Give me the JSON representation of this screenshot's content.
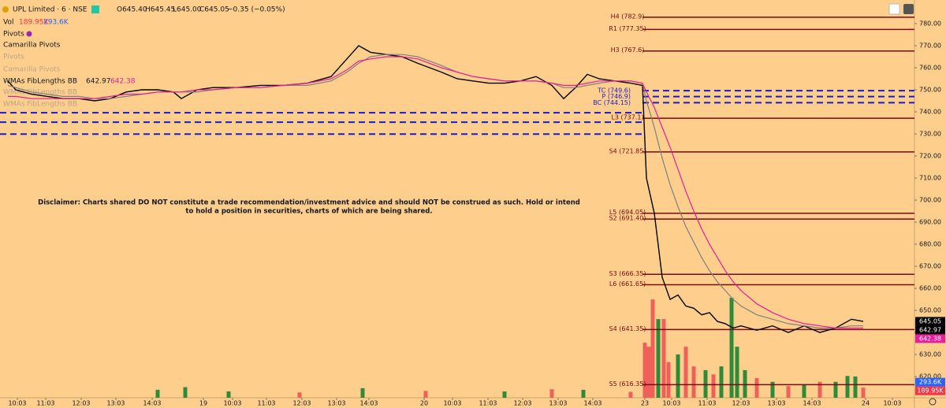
{
  "header": {
    "title": "UPL Limited · 6 · NSE",
    "ohlc": [
      "O645.40",
      "H645.45",
      "L645.00",
      "C645.05"
    ],
    "change": "−0.35 (−0.05%)",
    "volume_label": "Vol",
    "volume_values": [
      "189.95K",
      "293.6K"
    ],
    "indicators": [
      "Pivots",
      "Camarilla Pivots",
      "Pivots",
      "Camarilla Pivots",
      "WMAs FibLengths BB",
      "WMAs FibLengths BB",
      "WMAs FibLengths BB"
    ],
    "wma_values": [
      "642.97",
      "642.38"
    ]
  },
  "disclaimer": [
    "Disclaimer:  Charts shared DO NOT constitute a trade recommendation/investment advice and should NOT be construed as such. Hold or intend",
    "to hold a position in securities, charts of which are being shared."
  ],
  "chart_data": {
    "type": "line",
    "x": [
      1,
      2,
      4,
      6,
      8,
      10,
      12,
      14,
      16,
      18,
      20,
      22,
      23,
      25,
      27,
      30,
      33,
      36,
      39,
      42,
      44,
      45.5,
      47,
      49,
      51,
      53,
      54.5,
      56,
      58,
      60,
      62,
      64,
      66,
      68,
      70,
      71.5,
      73,
      74.5,
      76,
      78,
      80,
      81.5,
      82,
      83,
      84,
      85,
      86,
      87,
      88,
      89,
      90,
      91,
      92,
      93,
      94,
      96,
      98,
      100,
      102,
      104,
      106,
      108,
      109.5
    ],
    "series": [
      {
        "color": "#000000",
        "values": [
          754,
          750,
          748,
          747,
          746,
          746,
          745,
          746,
          749,
          750,
          750,
          749,
          746,
          750,
          751,
          751,
          752,
          752,
          753,
          756,
          764,
          770,
          767,
          766,
          765,
          762,
          760,
          758,
          755,
          754,
          753,
          753,
          754,
          756,
          752,
          746,
          751,
          757,
          755,
          754,
          753,
          752,
          710,
          694,
          665,
          655,
          657,
          652,
          651,
          648,
          649,
          645,
          644,
          642,
          643,
          641,
          643,
          640,
          643,
          640,
          642,
          646,
          645
        ]
      },
      {
        "color": "#808080",
        "values": [
          752,
          751,
          749,
          748,
          747,
          747,
          746,
          746,
          747,
          748,
          749,
          749,
          749,
          749,
          750,
          751,
          751,
          752,
          752,
          754,
          758,
          762,
          765,
          766,
          766,
          765,
          763,
          761,
          758,
          756,
          755,
          754,
          754,
          754,
          753,
          751,
          751,
          752,
          753,
          754,
          754,
          753,
          745,
          733,
          719,
          707,
          697,
          688,
          681,
          674,
          668,
          663,
          659,
          655,
          652,
          648,
          646,
          644,
          643,
          642,
          642,
          643,
          643
        ]
      },
      {
        "color": "#e91e9c",
        "values": [
          747,
          747,
          746,
          746,
          746,
          746,
          746,
          747,
          748,
          748,
          749,
          749,
          749,
          750,
          750,
          751,
          751,
          752,
          753,
          755,
          759,
          763,
          764,
          765,
          765,
          764,
          762,
          760,
          758,
          756,
          755,
          754,
          754,
          754,
          753,
          752,
          752,
          753,
          754,
          754,
          754,
          753,
          749,
          742,
          733,
          724,
          714,
          704,
          695,
          687,
          680,
          674,
          668,
          663,
          659,
          653,
          649,
          646,
          644,
          643,
          642,
          642,
          642
        ]
      }
    ],
    "xlim": [
      0,
      116
    ],
    "xticks": [
      {
        "value": 2.2,
        "label": "10:03"
      },
      {
        "value": 5.8,
        "label": "11:03"
      },
      {
        "value": 10.3,
        "label": "12:03"
      },
      {
        "value": 14.7,
        "label": "13:03"
      },
      {
        "value": 19.3,
        "label": "14:03"
      },
      {
        "value": 25.8,
        "label": "19"
      },
      {
        "value": 29.5,
        "label": "10:03"
      },
      {
        "value": 33.8,
        "label": "11:03"
      },
      {
        "value": 38.3,
        "label": "12:03"
      },
      {
        "value": 42.7,
        "label": "13:03"
      },
      {
        "value": 46.8,
        "label": "14:03"
      },
      {
        "value": 53.8,
        "label": "20"
      },
      {
        "value": 57.4,
        "label": "10:03"
      },
      {
        "value": 61.9,
        "label": "11:03"
      },
      {
        "value": 66.3,
        "label": "12:03"
      },
      {
        "value": 70.8,
        "label": "13:03"
      },
      {
        "value": 75.2,
        "label": "14:03"
      },
      {
        "value": 81.8,
        "label": "23"
      },
      {
        "value": 85.2,
        "label": "10:03"
      },
      {
        "value": 89.7,
        "label": "11:03"
      },
      {
        "value": 94,
        "label": "12:03"
      },
      {
        "value": 98.5,
        "label": "13:03"
      },
      {
        "value": 103,
        "label": "14:03"
      },
      {
        "value": 109.8,
        "label": "24"
      },
      {
        "value": 113.2,
        "label": "10:03"
      }
    ],
    "ylim": [
      610.4,
      790.7
    ],
    "yticks": [
      {
        "value": 620,
        "label": "620.00"
      },
      {
        "value": 630,
        "label": "630.00"
      },
      {
        "value": 640,
        "label": "640.00"
      },
      {
        "value": 650,
        "label": "650.00"
      },
      {
        "value": 660,
        "label": "660.00"
      },
      {
        "value": 670,
        "label": "670.00"
      },
      {
        "value": 680,
        "label": "680.00"
      },
      {
        "value": 690,
        "label": "690.00"
      },
      {
        "value": 700,
        "label": "700.00"
      },
      {
        "value": 710,
        "label": "710.00"
      },
      {
        "value": 720,
        "label": "720.00"
      },
      {
        "value": 730,
        "label": "730.00"
      },
      {
        "value": 740,
        "label": "740.00"
      },
      {
        "value": 750,
        "label": "750.00"
      },
      {
        "value": 760,
        "label": "760.00"
      },
      {
        "value": 770,
        "label": "770.00"
      },
      {
        "value": 780,
        "label": "780.00"
      }
    ],
    "pivots": [
      {
        "value": 782.9,
        "label": "H4 (782.9)"
      },
      {
        "value": 777.35,
        "label": "R1 (777.35)"
      },
      {
        "value": 767.6,
        "label": "H3 (767.6)"
      },
      {
        "value": 737.1,
        "label": "L3 (737.1)"
      },
      {
        "value": 721.85,
        "label": "S4 (721.85)"
      },
      {
        "value": 694.05,
        "label": "L5 (694.05)"
      },
      {
        "value": 691.4,
        "label": "S2 (691.40)"
      },
      {
        "value": 666.35,
        "label": "S3 (666.35)"
      },
      {
        "value": 661.65,
        "label": "L6 (661.65)"
      },
      {
        "value": 641.35,
        "label": "S4 (641.35)"
      },
      {
        "value": 616.35,
        "label": "S5 (616.35)"
      }
    ],
    "pivot_color": "#7a0a14",
    "cpr": [
      {
        "value": 749.6,
        "label": "TC (749.6)"
      },
      {
        "value": 746.9,
        "label": "P (746.9)"
      },
      {
        "value": 744.15,
        "label": "BC (744.15)"
      }
    ],
    "prev_cpr": [
      739.6,
      735.3,
      729.9
    ],
    "cpr_color": "#1a1ad0",
    "last_labels": [
      {
        "value": 645.05,
        "label": "645.05",
        "color": "#000000"
      },
      {
        "value": 642.97,
        "label": "642.97",
        "color": "#000000"
      },
      {
        "value": 642.38,
        "label": "642.38",
        "color": "#e91e9c"
      }
    ],
    "volume": {
      "x": [
        20,
        23.5,
        29,
        38,
        46,
        54,
        64,
        70,
        74,
        80,
        81.8,
        82.3,
        82.8,
        83.5,
        84.2,
        84.8,
        86,
        87,
        88,
        89.5,
        90.5,
        91.5,
        92.8,
        93.5,
        94.5,
        96,
        98,
        100,
        102,
        104,
        106,
        107.5,
        108.5,
        109.5
      ],
      "values": [
        150,
        200,
        120,
        100,
        180,
        130,
        120,
        160,
        150,
        110,
        1036,
        960,
        1850,
        1480,
        1480,
        670,
        815,
        960,
        590,
        520,
        440,
        590,
        1880,
        960,
        520,
        370,
        300,
        220,
        250,
        300,
        300,
        410,
        400,
        190
      ],
      "up": [
        true,
        true,
        true,
        false,
        true,
        false,
        true,
        false,
        true,
        false,
        false,
        false,
        false,
        true,
        false,
        false,
        true,
        false,
        false,
        true,
        false,
        true,
        true,
        true,
        true,
        false,
        true,
        false,
        true,
        false,
        true,
        true,
        true,
        false
      ],
      "vlim": [
        0,
        2000
      ],
      "up_color": "#2e8b3a",
      "down_color": "#f0605a",
      "last_labels": [
        {
          "value": 293.6,
          "label": "293.6K",
          "color": "#2962ff"
        },
        {
          "value": 189.95,
          "label": "189.95K",
          "color": "#f23645"
        }
      ]
    }
  }
}
